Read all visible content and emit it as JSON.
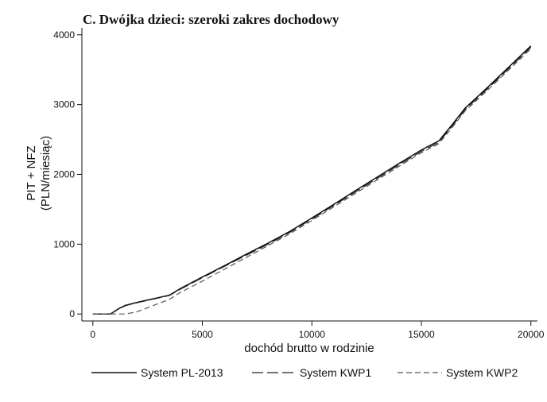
{
  "chart_data": {
    "type": "line",
    "title": "C.   Dwójka dzieci: szeroki zakres dochodowy",
    "xlabel": "dochód brutto w rodzinie",
    "ylabel_line1": "PIT + NFZ",
    "ylabel_line2": "(PLN/miesiąc)",
    "xlim": [
      -500,
      20300
    ],
    "ylim": [
      -100,
      4100
    ],
    "xticks": [
      0,
      5000,
      10000,
      15000,
      20000
    ],
    "yticks": [
      0,
      1000,
      2000,
      3000,
      4000
    ],
    "grid": false,
    "legend_position": "bottom",
    "series": [
      {
        "name": "System PL-2013",
        "style": "solid",
        "x": [
          0,
          800,
          1000,
          1200,
          1500,
          2000,
          2500,
          3000,
          3500,
          4000,
          5000,
          6000,
          7000,
          8000,
          9000,
          10000,
          11000,
          12000,
          13000,
          14000,
          15000,
          15800,
          16500,
          17000,
          18000,
          19000,
          20000
        ],
        "y": [
          0,
          0,
          40,
          80,
          125,
          165,
          200,
          235,
          270,
          365,
          530,
          690,
          855,
          1015,
          1185,
          1375,
          1570,
          1770,
          1965,
          2160,
          2350,
          2480,
          2750,
          2950,
          3240,
          3540,
          3840
        ]
      },
      {
        "name": "System KWP1",
        "style": "longdash",
        "x": [
          0,
          800,
          1000,
          1200,
          1500,
          2000,
          2500,
          3000,
          3500,
          4000,
          5000,
          6000,
          7000,
          8000,
          9000,
          10000,
          11000,
          12000,
          13000,
          14000,
          15000,
          15800,
          16500,
          17000,
          18000,
          19000,
          20000
        ],
        "y": [
          0,
          0,
          35,
          75,
          120,
          160,
          195,
          230,
          265,
          355,
          520,
          680,
          840,
          1000,
          1170,
          1360,
          1555,
          1750,
          1945,
          2140,
          2330,
          2460,
          2730,
          2930,
          3220,
          3520,
          3820
        ]
      },
      {
        "name": "System KWP2",
        "style": "dash",
        "x": [
          0,
          800,
          1500,
          2000,
          2500,
          3000,
          3500,
          4000,
          5000,
          6000,
          7000,
          8000,
          9000,
          10000,
          11000,
          12000,
          13000,
          14000,
          15000,
          15800,
          16500,
          17000,
          18000,
          19000,
          20000
        ],
        "y": [
          0,
          0,
          0,
          30,
          90,
          150,
          210,
          310,
          470,
          640,
          810,
          980,
          1150,
          1340,
          1535,
          1730,
          1925,
          2120,
          2310,
          2440,
          2710,
          2910,
          3200,
          3500,
          3800
        ]
      }
    ]
  }
}
